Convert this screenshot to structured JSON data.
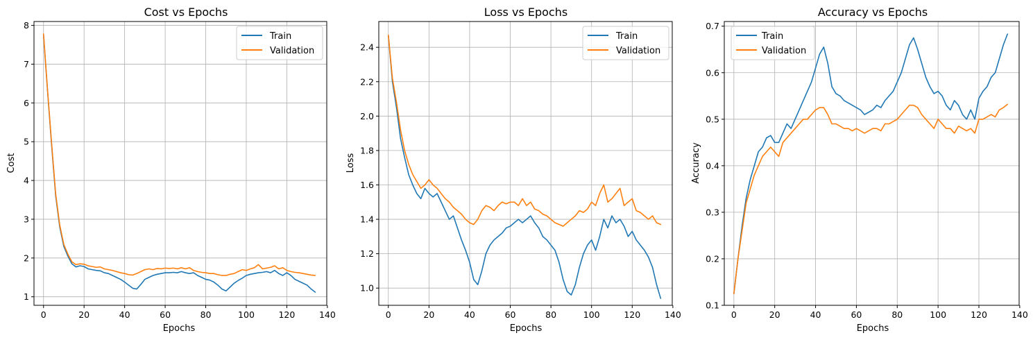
{
  "figure": {
    "colors": {
      "train": "#1f77b4",
      "validation": "#ff7f0e",
      "grid": "#b0b0b0",
      "frame": "#000000"
    }
  },
  "chart_data": [
    {
      "type": "line",
      "title": "Cost vs Epochs",
      "xlabel": "Epochs",
      "ylabel": "Cost",
      "xlim": [
        -4.7,
        139.7
      ],
      "ylim": [
        0.78,
        8.1
      ],
      "xticks": [
        0,
        20,
        40,
        60,
        80,
        100,
        120,
        140
      ],
      "yticks": [
        1,
        2,
        3,
        4,
        5,
        6,
        7,
        8
      ],
      "grid": true,
      "legend_position": "top-right",
      "series": [
        {
          "name": "Train",
          "color": "#1f77b4",
          "x": [
            0,
            2,
            4,
            6,
            8,
            10,
            12,
            14,
            16,
            18,
            20,
            22,
            24,
            26,
            28,
            30,
            32,
            34,
            36,
            38,
            40,
            42,
            44,
            46,
            48,
            50,
            52,
            54,
            56,
            58,
            60,
            62,
            64,
            66,
            68,
            70,
            72,
            74,
            76,
            78,
            80,
            82,
            84,
            86,
            88,
            90,
            92,
            94,
            96,
            98,
            100,
            102,
            104,
            106,
            108,
            110,
            112,
            114,
            116,
            118,
            120,
            122,
            124,
            126,
            128,
            130,
            132,
            134
          ],
          "y": [
            7.75,
            6.3,
            4.9,
            3.6,
            2.8,
            2.3,
            2.05,
            1.85,
            1.77,
            1.8,
            1.78,
            1.72,
            1.7,
            1.68,
            1.67,
            1.62,
            1.6,
            1.55,
            1.5,
            1.45,
            1.38,
            1.3,
            1.22,
            1.2,
            1.32,
            1.45,
            1.5,
            1.55,
            1.58,
            1.6,
            1.62,
            1.62,
            1.63,
            1.62,
            1.65,
            1.62,
            1.6,
            1.62,
            1.55,
            1.5,
            1.45,
            1.43,
            1.38,
            1.3,
            1.2,
            1.15,
            1.25,
            1.35,
            1.42,
            1.48,
            1.55,
            1.58,
            1.6,
            1.62,
            1.63,
            1.65,
            1.62,
            1.68,
            1.6,
            1.55,
            1.62,
            1.55,
            1.45,
            1.4,
            1.35,
            1.3,
            1.2,
            1.12
          ]
        },
        {
          "name": "Validation",
          "color": "#ff7f0e",
          "x": [
            0,
            2,
            4,
            6,
            8,
            10,
            12,
            14,
            16,
            18,
            20,
            22,
            24,
            26,
            28,
            30,
            32,
            34,
            36,
            38,
            40,
            42,
            44,
            46,
            48,
            50,
            52,
            54,
            56,
            58,
            60,
            62,
            64,
            66,
            68,
            70,
            72,
            74,
            76,
            78,
            80,
            82,
            84,
            86,
            88,
            90,
            92,
            94,
            96,
            98,
            100,
            102,
            104,
            106,
            108,
            110,
            112,
            114,
            116,
            118,
            120,
            122,
            124,
            126,
            128,
            130,
            132,
            134
          ],
          "y": [
            7.78,
            6.32,
            4.95,
            3.65,
            2.85,
            2.35,
            2.1,
            1.9,
            1.83,
            1.85,
            1.84,
            1.8,
            1.78,
            1.76,
            1.77,
            1.72,
            1.7,
            1.68,
            1.65,
            1.62,
            1.6,
            1.57,
            1.56,
            1.6,
            1.65,
            1.7,
            1.72,
            1.7,
            1.73,
            1.72,
            1.74,
            1.73,
            1.74,
            1.72,
            1.75,
            1.72,
            1.75,
            1.68,
            1.65,
            1.63,
            1.62,
            1.6,
            1.6,
            1.57,
            1.55,
            1.55,
            1.58,
            1.6,
            1.65,
            1.7,
            1.68,
            1.72,
            1.75,
            1.83,
            1.72,
            1.74,
            1.76,
            1.8,
            1.72,
            1.75,
            1.68,
            1.65,
            1.63,
            1.62,
            1.6,
            1.58,
            1.56,
            1.55
          ]
        }
      ]
    },
    {
      "type": "line",
      "title": "Loss vs Epochs",
      "xlabel": "Epochs",
      "ylabel": "Loss",
      "xlim": [
        -4.7,
        139.7
      ],
      "ylim": [
        0.9,
        2.55
      ],
      "xticks": [
        0,
        20,
        40,
        60,
        80,
        100,
        120,
        140
      ],
      "yticks": [
        1.0,
        1.2,
        1.4,
        1.6,
        1.8,
        2.0,
        2.2,
        2.4
      ],
      "grid": true,
      "legend_position": "top-right",
      "series": [
        {
          "name": "Train",
          "color": "#1f77b4",
          "x": [
            0,
            2,
            4,
            6,
            8,
            10,
            12,
            14,
            16,
            18,
            20,
            22,
            24,
            26,
            28,
            30,
            32,
            34,
            36,
            38,
            40,
            42,
            44,
            46,
            48,
            50,
            52,
            54,
            56,
            58,
            60,
            62,
            64,
            66,
            68,
            70,
            72,
            74,
            76,
            78,
            80,
            82,
            84,
            86,
            88,
            90,
            92,
            94,
            96,
            98,
            100,
            102,
            104,
            106,
            108,
            110,
            112,
            114,
            116,
            118,
            120,
            122,
            124,
            126,
            128,
            130,
            132,
            134
          ],
          "y": [
            2.47,
            2.2,
            2.05,
            1.87,
            1.76,
            1.66,
            1.6,
            1.55,
            1.52,
            1.58,
            1.55,
            1.53,
            1.55,
            1.5,
            1.45,
            1.4,
            1.42,
            1.35,
            1.28,
            1.22,
            1.15,
            1.05,
            1.02,
            1.1,
            1.2,
            1.25,
            1.28,
            1.3,
            1.32,
            1.35,
            1.36,
            1.38,
            1.4,
            1.38,
            1.4,
            1.42,
            1.38,
            1.35,
            1.3,
            1.28,
            1.25,
            1.22,
            1.15,
            1.05,
            0.98,
            0.96,
            1.02,
            1.12,
            1.2,
            1.25,
            1.28,
            1.22,
            1.3,
            1.4,
            1.35,
            1.42,
            1.38,
            1.4,
            1.36,
            1.3,
            1.33,
            1.28,
            1.25,
            1.22,
            1.18,
            1.12,
            1.02,
            0.94
          ]
        },
        {
          "name": "Validation",
          "color": "#ff7f0e",
          "x": [
            0,
            2,
            4,
            6,
            8,
            10,
            12,
            14,
            16,
            18,
            20,
            22,
            24,
            26,
            28,
            30,
            32,
            34,
            36,
            38,
            40,
            42,
            44,
            46,
            48,
            50,
            52,
            54,
            56,
            58,
            60,
            62,
            64,
            66,
            68,
            70,
            72,
            74,
            76,
            78,
            80,
            82,
            84,
            86,
            88,
            90,
            92,
            94,
            96,
            98,
            100,
            102,
            104,
            106,
            108,
            110,
            112,
            114,
            116,
            118,
            120,
            122,
            124,
            126,
            128,
            130,
            132,
            134
          ],
          "y": [
            2.47,
            2.22,
            2.08,
            1.92,
            1.8,
            1.72,
            1.66,
            1.62,
            1.58,
            1.6,
            1.63,
            1.6,
            1.58,
            1.55,
            1.52,
            1.5,
            1.47,
            1.45,
            1.43,
            1.4,
            1.38,
            1.37,
            1.4,
            1.45,
            1.48,
            1.47,
            1.45,
            1.48,
            1.5,
            1.49,
            1.5,
            1.5,
            1.48,
            1.52,
            1.48,
            1.5,
            1.46,
            1.45,
            1.43,
            1.42,
            1.4,
            1.38,
            1.37,
            1.36,
            1.38,
            1.4,
            1.42,
            1.45,
            1.44,
            1.46,
            1.5,
            1.48,
            1.55,
            1.6,
            1.5,
            1.52,
            1.55,
            1.58,
            1.48,
            1.5,
            1.52,
            1.45,
            1.44,
            1.42,
            1.4,
            1.42,
            1.38,
            1.37
          ]
        }
      ]
    },
    {
      "type": "line",
      "title": "Accuracy vs Epochs",
      "xlabel": "Epochs",
      "ylabel": "Accuracy",
      "xlim": [
        -4.7,
        139.7
      ],
      "ylim": [
        0.1,
        0.71
      ],
      "xticks": [
        0,
        20,
        40,
        60,
        80,
        100,
        120,
        140
      ],
      "yticks": [
        0.1,
        0.2,
        0.3,
        0.4,
        0.5,
        0.6,
        0.7
      ],
      "grid": true,
      "legend_position": "top-left",
      "series": [
        {
          "name": "Train",
          "color": "#1f77b4",
          "x": [
            0,
            2,
            4,
            6,
            8,
            10,
            12,
            14,
            16,
            18,
            20,
            22,
            24,
            26,
            28,
            30,
            32,
            34,
            36,
            38,
            40,
            42,
            44,
            46,
            48,
            50,
            52,
            54,
            56,
            58,
            60,
            62,
            64,
            66,
            68,
            70,
            72,
            74,
            76,
            78,
            80,
            82,
            84,
            86,
            88,
            90,
            92,
            94,
            96,
            98,
            100,
            102,
            104,
            106,
            108,
            110,
            112,
            114,
            116,
            118,
            120,
            122,
            124,
            126,
            128,
            130,
            132,
            134
          ],
          "y": [
            0.125,
            0.2,
            0.27,
            0.33,
            0.37,
            0.4,
            0.43,
            0.44,
            0.46,
            0.465,
            0.45,
            0.45,
            0.47,
            0.49,
            0.48,
            0.5,
            0.52,
            0.54,
            0.56,
            0.58,
            0.61,
            0.64,
            0.655,
            0.62,
            0.57,
            0.555,
            0.55,
            0.54,
            0.535,
            0.53,
            0.525,
            0.52,
            0.51,
            0.515,
            0.52,
            0.53,
            0.525,
            0.54,
            0.55,
            0.56,
            0.58,
            0.6,
            0.63,
            0.66,
            0.675,
            0.65,
            0.62,
            0.59,
            0.57,
            0.555,
            0.56,
            0.55,
            0.53,
            0.52,
            0.54,
            0.53,
            0.51,
            0.5,
            0.52,
            0.5,
            0.545,
            0.56,
            0.57,
            0.59,
            0.6,
            0.63,
            0.66,
            0.683
          ]
        },
        {
          "name": "Validation",
          "color": "#ff7f0e",
          "x": [
            0,
            2,
            4,
            6,
            8,
            10,
            12,
            14,
            16,
            18,
            20,
            22,
            24,
            26,
            28,
            30,
            32,
            34,
            36,
            38,
            40,
            42,
            44,
            46,
            48,
            50,
            52,
            54,
            56,
            58,
            60,
            62,
            64,
            66,
            68,
            70,
            72,
            74,
            76,
            78,
            80,
            82,
            84,
            86,
            88,
            90,
            92,
            94,
            96,
            98,
            100,
            102,
            104,
            106,
            108,
            110,
            112,
            114,
            116,
            118,
            120,
            122,
            124,
            126,
            128,
            130,
            132,
            134
          ],
          "y": [
            0.125,
            0.2,
            0.26,
            0.32,
            0.35,
            0.38,
            0.4,
            0.42,
            0.43,
            0.44,
            0.43,
            0.42,
            0.45,
            0.46,
            0.47,
            0.48,
            0.49,
            0.5,
            0.5,
            0.51,
            0.52,
            0.525,
            0.525,
            0.51,
            0.49,
            0.49,
            0.485,
            0.48,
            0.48,
            0.475,
            0.48,
            0.475,
            0.47,
            0.475,
            0.48,
            0.48,
            0.475,
            0.49,
            0.49,
            0.495,
            0.5,
            0.51,
            0.52,
            0.53,
            0.53,
            0.525,
            0.51,
            0.5,
            0.49,
            0.48,
            0.5,
            0.49,
            0.48,
            0.48,
            0.47,
            0.485,
            0.48,
            0.475,
            0.48,
            0.47,
            0.5,
            0.5,
            0.505,
            0.51,
            0.505,
            0.52,
            0.525,
            0.532
          ]
        }
      ]
    }
  ]
}
